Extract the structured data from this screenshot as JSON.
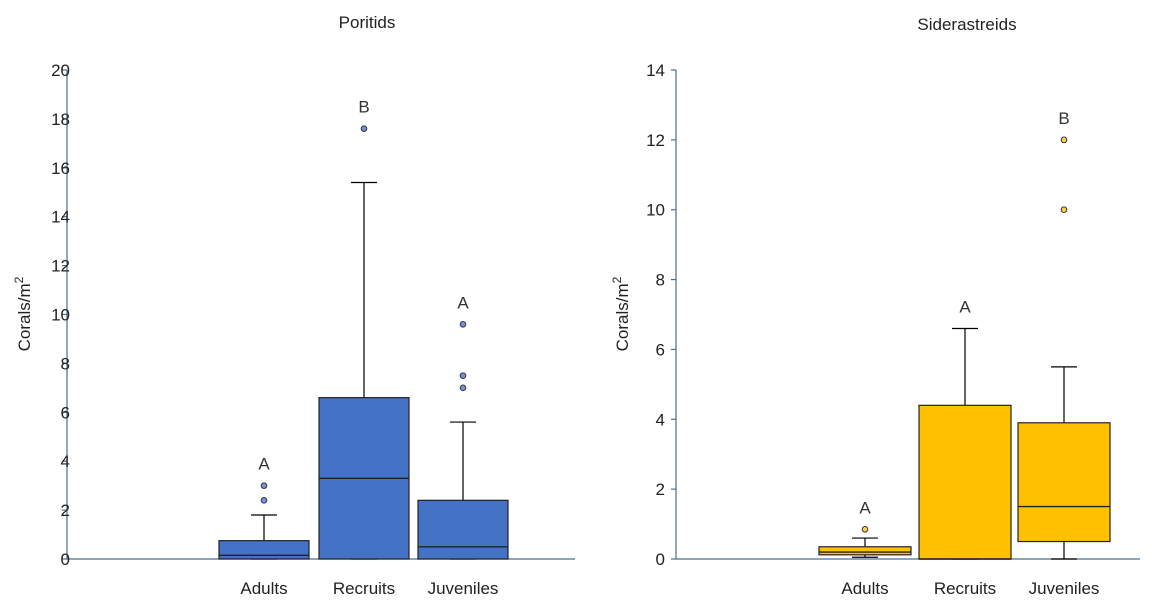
{
  "chart_data": [
    {
      "type": "box",
      "title": "Poritids",
      "ylabel": "Corals/m",
      "ylabel_sup": "2",
      "ylim": [
        0,
        20
      ],
      "yticks": [
        "0",
        "2",
        "4",
        "6",
        "8",
        "10",
        "12",
        "14",
        "16",
        "18",
        "20"
      ],
      "categories": [
        "Adults",
        "Recruits",
        "Juveniles"
      ],
      "color": "#4472C4",
      "boxes": [
        {
          "category": "Adults",
          "min": 0,
          "q1": 0,
          "median": 0.15,
          "q3": 0.75,
          "max": 1.8,
          "outliers": [
            2.4,
            3.0
          ],
          "letter": "A"
        },
        {
          "category": "Recruits",
          "min": 0,
          "q1": 0,
          "median": 3.3,
          "q3": 6.6,
          "max": 15.4,
          "outliers": [
            17.6
          ],
          "letter": "B"
        },
        {
          "category": "Juveniles",
          "min": 0,
          "q1": 0,
          "median": 0.5,
          "q3": 2.4,
          "max": 5.6,
          "outliers": [
            7.0,
            7.5,
            9.6
          ],
          "letter": "A"
        }
      ]
    },
    {
      "type": "box",
      "title": "Siderastreids",
      "ylabel": "Corals/m",
      "ylabel_sup": "2",
      "ylim": [
        0,
        14
      ],
      "yticks": [
        "0",
        "2",
        "4",
        "6",
        "8",
        "10",
        "12",
        "14"
      ],
      "categories": [
        "Adults",
        "Recruits",
        "Juveniles"
      ],
      "color": "#FFC000",
      "boxes": [
        {
          "category": "Adults",
          "min": 0.05,
          "q1": 0.12,
          "median": 0.2,
          "q3": 0.35,
          "max": 0.6,
          "outliers": [
            0.85
          ],
          "letter": "A"
        },
        {
          "category": "Recruits",
          "min": 0,
          "q1": 0,
          "median": 0,
          "q3": 4.4,
          "max": 6.6,
          "outliers": [],
          "letter": "A"
        },
        {
          "category": "Juveniles",
          "min": 0,
          "q1": 0.5,
          "median": 1.5,
          "q3": 3.9,
          "max": 5.5,
          "outliers": [
            10.0,
            12.0
          ],
          "letter": "B"
        }
      ]
    }
  ]
}
